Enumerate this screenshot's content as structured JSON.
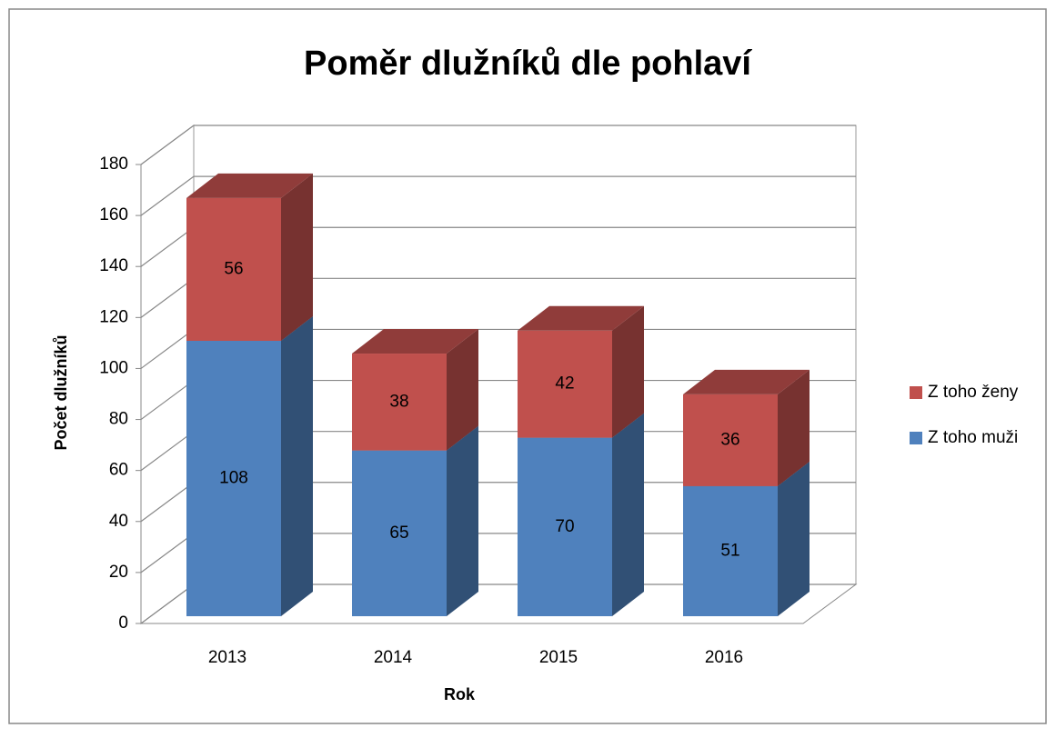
{
  "chart_data": {
    "type": "bar3d_stacked",
    "title": "Poměr dlužníků dle pohlaví",
    "x_label": "Rok",
    "y_label": "Počet dlužníků",
    "categories": [
      "2013",
      "2014",
      "2015",
      "2016"
    ],
    "series": [
      {
        "name": "Z toho muži",
        "color": "#4f81bd",
        "values": [
          108,
          65,
          70,
          51
        ]
      },
      {
        "name": "Z toho ženy",
        "color": "#c0504d",
        "values": [
          56,
          38,
          42,
          36
        ]
      }
    ],
    "ylim": [
      0,
      180
    ],
    "yticks": [
      0,
      20,
      40,
      60,
      80,
      100,
      120,
      140,
      160,
      180
    ],
    "grid": true,
    "legend": "right"
  }
}
